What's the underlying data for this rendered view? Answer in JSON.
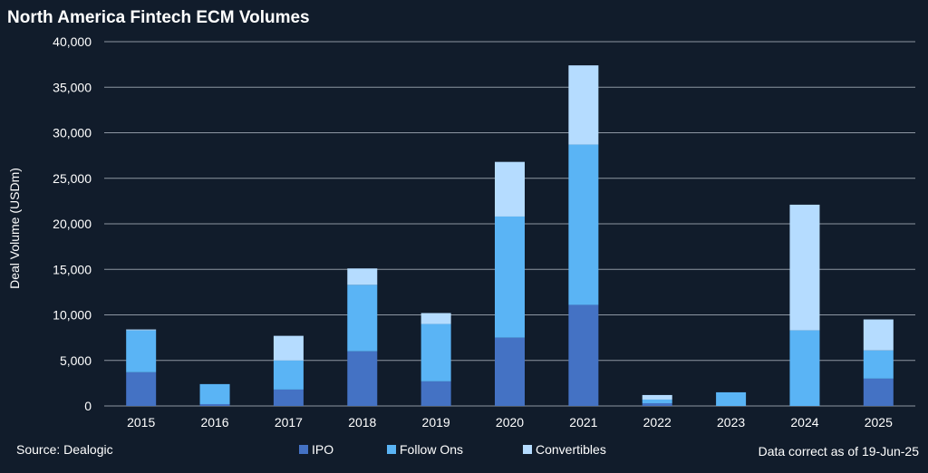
{
  "chart_data": {
    "type": "bar",
    "stacked": true,
    "title": "North America Fintech ECM Volumes",
    "ylabel": "Deal Volume (USDm)",
    "xlabel": "",
    "ylim": [
      0,
      40000
    ],
    "yticks": [
      0,
      5000,
      10000,
      15000,
      20000,
      25000,
      30000,
      35000,
      40000
    ],
    "ytick_labels": [
      "0",
      "5,000",
      "10,000",
      "15,000",
      "20,000",
      "25,000",
      "30,000",
      "35,000",
      "40,000"
    ],
    "grid": true,
    "legend_position": "bottom",
    "categories": [
      "2015",
      "2016",
      "2017",
      "2018",
      "2019",
      "2020",
      "2021",
      "2022",
      "2023",
      "2024",
      "2025"
    ],
    "series": [
      {
        "name": "IPO",
        "color": "#4472c4",
        "values": [
          3700,
          200,
          1800,
          6000,
          2700,
          7500,
          11100,
          300,
          0,
          0,
          3000
        ]
      },
      {
        "name": "Follow Ons",
        "color": "#5ab4f5",
        "values": [
          4600,
          2200,
          3200,
          7300,
          6300,
          13300,
          17600,
          400,
          1500,
          8300,
          3100
        ]
      },
      {
        "name": "Convertibles",
        "color": "#b5dcff",
        "values": [
          100,
          0,
          2700,
          1800,
          1200,
          6000,
          8700,
          500,
          0,
          13800,
          3400
        ]
      }
    ]
  },
  "footer": {
    "source": "Source: Dealogic",
    "data_note": "Data correct as of 19-Jun-25"
  },
  "colors": {
    "background": "#111c2b",
    "gridline": "#8d96a2",
    "text": "#ffffff"
  }
}
